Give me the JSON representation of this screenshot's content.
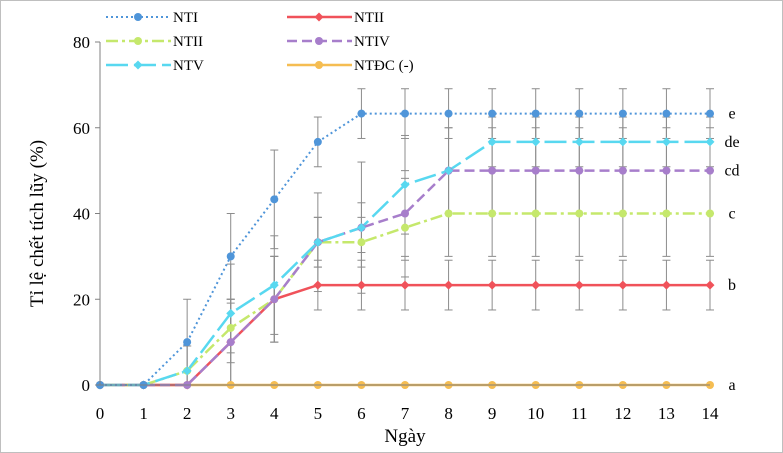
{
  "chart_data": {
    "type": "line",
    "xlabel": "Ngày",
    "ylabel": "Tỉ lệ chết tích lũy (%)",
    "x": [
      0,
      1,
      2,
      3,
      4,
      5,
      6,
      7,
      8,
      9,
      10,
      11,
      12,
      13,
      14
    ],
    "xlim": [
      0,
      14
    ],
    "ylim": [
      0,
      80
    ],
    "yticks": [
      0,
      20,
      40,
      60,
      80
    ],
    "grid": false,
    "legend_position": "top",
    "series": [
      {
        "name": "NTI",
        "color": "#4f95d9",
        "dash": "2,3",
        "marker": "circle",
        "sig": "e",
        "values": [
          0,
          0,
          10,
          30,
          43.3,
          56.7,
          63.3,
          63.3,
          63.3,
          63.3,
          63.3,
          63.3,
          63.3,
          63.3,
          63.3
        ],
        "err": [
          0,
          0,
          10,
          10,
          11.5,
          5.8,
          5.8,
          5.8,
          5.8,
          5.8,
          5.8,
          5.8,
          5.8,
          5.8,
          5.8
        ]
      },
      {
        "name": "NTII",
        "color": "#f0525a",
        "dash": "",
        "marker": "diamond",
        "sig": "b",
        "values": [
          0,
          0,
          0,
          10,
          20,
          23.3,
          23.3,
          23.3,
          23.3,
          23.3,
          23.3,
          23.3,
          23.3,
          23.3,
          23.3
        ],
        "err": [
          0,
          0,
          0,
          10,
          10,
          5.8,
          5.8,
          5.8,
          5.8,
          5.8,
          5.8,
          5.8,
          5.8,
          5.8,
          5.8
        ]
      },
      {
        "name": "NTII",
        "color": "#c5e86c",
        "dash": "12,4,3,4",
        "marker": "circle",
        "sig": "c",
        "values": [
          0,
          0,
          3.3,
          13.3,
          20,
          33.3,
          33.3,
          36.7,
          40,
          40,
          40,
          40,
          40,
          40,
          40
        ],
        "err": [
          0,
          0,
          5.8,
          5.8,
          10,
          5.8,
          5.8,
          11.5,
          10,
          10,
          10,
          10,
          10,
          10,
          10
        ]
      },
      {
        "name": "NTIV",
        "color": "#a77ecb",
        "dash": "10,5",
        "marker": "circle",
        "sig": "cd",
        "values": [
          0,
          0,
          0,
          10,
          20,
          33.3,
          36.7,
          40,
          50,
          50,
          50,
          50,
          50,
          50,
          50
        ],
        "err": [
          0,
          0,
          0,
          10,
          10,
          5.8,
          5.8,
          10,
          10,
          10,
          10,
          10,
          10,
          10,
          10
        ]
      },
      {
        "name": "NTV",
        "color": "#58d8f0",
        "dash": "22,6",
        "marker": "diamond",
        "sig": "de",
        "values": [
          0,
          0,
          3.3,
          16.7,
          23.3,
          33.3,
          36.7,
          46.7,
          50,
          56.7,
          56.7,
          56.7,
          56.7,
          56.7,
          56.7
        ],
        "err": [
          0,
          0,
          5.8,
          11.5,
          11.5,
          11.5,
          15.3,
          11.5,
          10,
          5.8,
          5.8,
          5.8,
          5.8,
          5.8,
          5.8
        ]
      },
      {
        "name": "NTĐC (-)",
        "color": "#f5bd52",
        "dash": "",
        "marker": "circle",
        "sig": "a",
        "values": [
          0,
          0,
          0,
          0,
          0,
          0,
          0,
          0,
          0,
          0,
          0,
          0,
          0,
          0,
          0
        ],
        "err": [
          0,
          0,
          0,
          0,
          0,
          0,
          0,
          0,
          0,
          0,
          0,
          0,
          0,
          0,
          0
        ]
      }
    ]
  }
}
